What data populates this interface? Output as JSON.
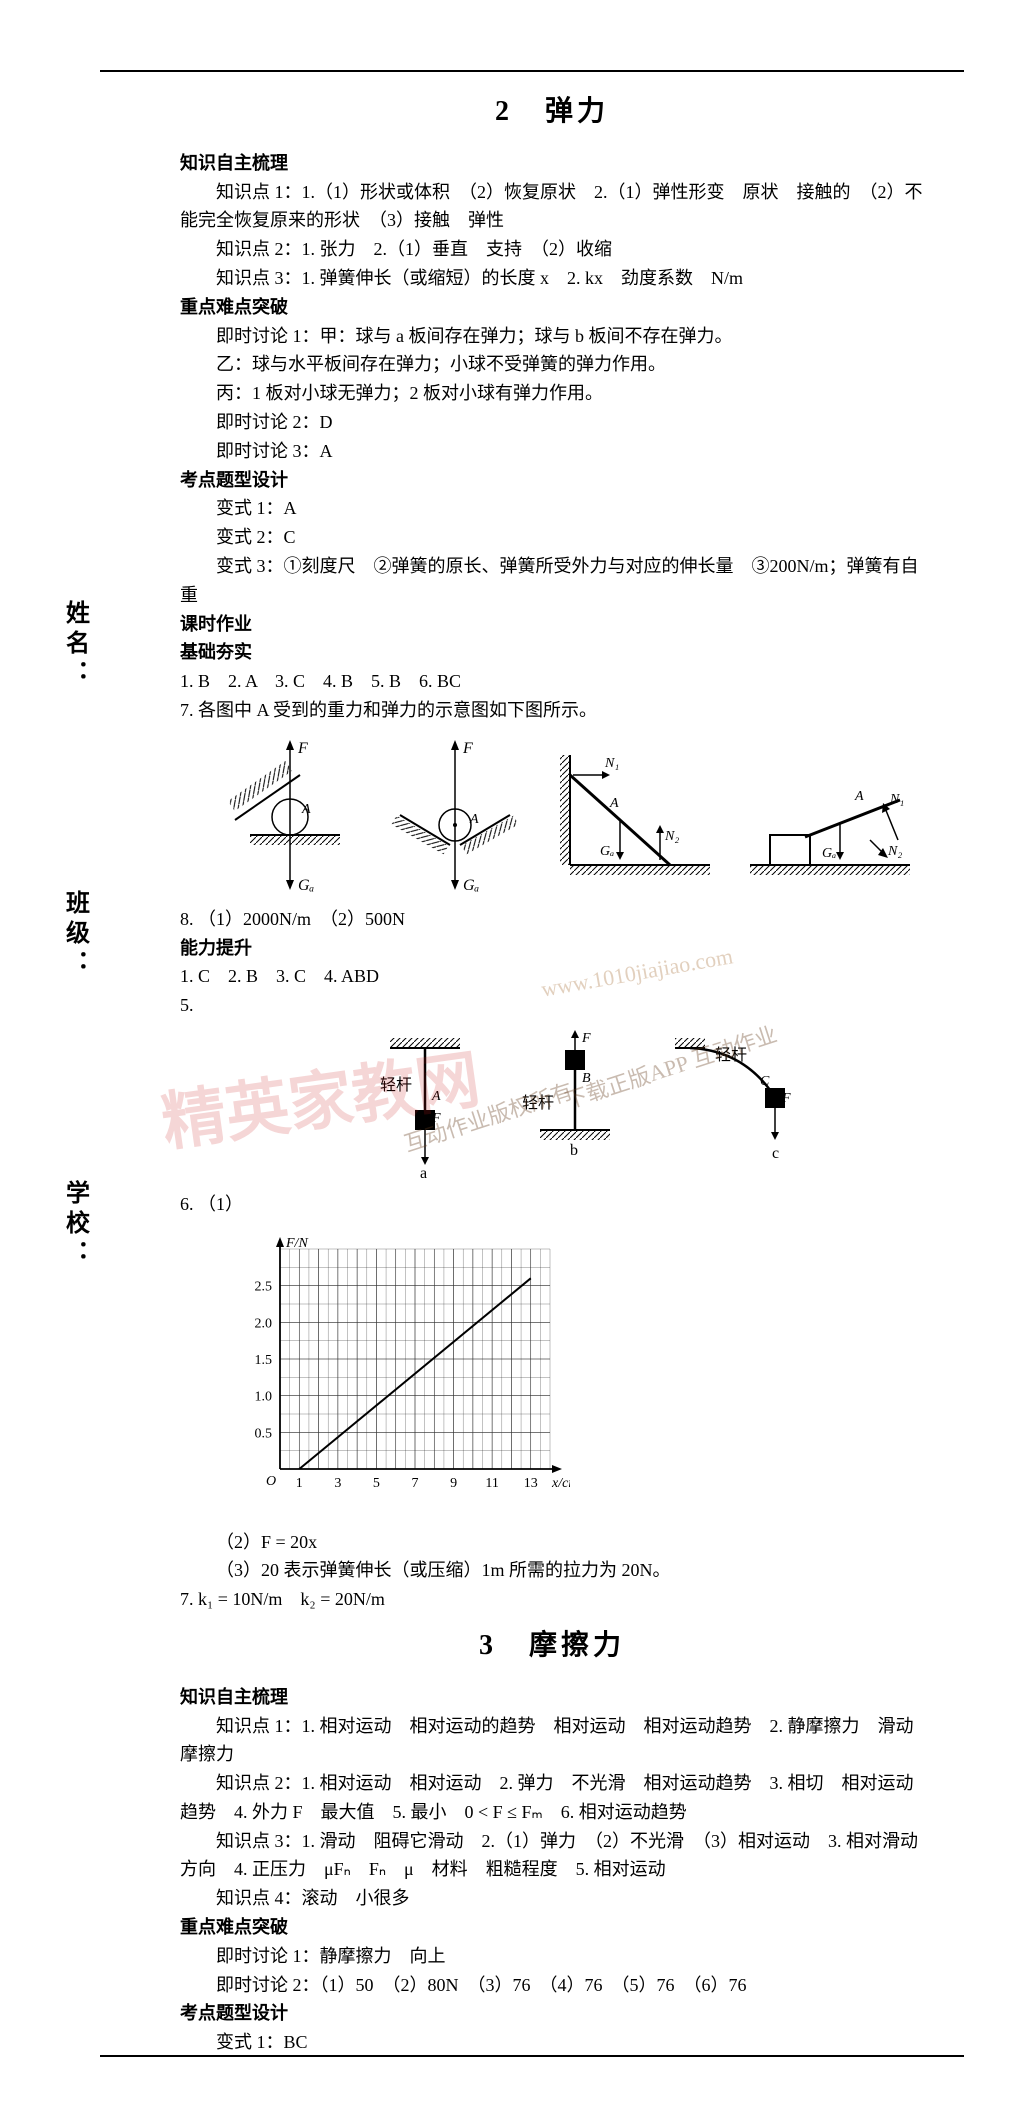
{
  "side_labels": {
    "name": "姓名：",
    "class": "班级：",
    "school": "学校："
  },
  "section2": {
    "title": "2　弹力",
    "zzzs_heading": "知识自主梳理",
    "zzzs_lines": [
      "知识点 1：1.（1）形状或体积　（2）恢复原状　2.（1）弹性形变　原状　接触的　（2）不能完全恢复原来的形状　（3）接触　弹性",
      "知识点 2：1. 张力　2.（1）垂直　支持　（2）收缩",
      "知识点 3：1. 弹簧伸长（或缩短）的长度 x　2. kx　劲度系数　N/m"
    ],
    "zdnd_heading": "重点难点突破",
    "zdnd_lines": [
      "即时讨论 1：甲：球与 a 板间存在弹力；球与 b 板间不存在弹力。",
      "乙：球与水平板间存在弹力；小球不受弹簧的弹力作用。",
      "丙：1 板对小球无弹力；2 板对小球有弹力作用。",
      "即时讨论 2：D",
      "即时讨论 3：A"
    ],
    "kdtx_heading": "考点题型设计",
    "kdtx_lines": [
      "变式 1：A",
      "变式 2：C",
      "变式 3：①刻度尺　②弹簧的原长、弹簧所受外力与对应的伸长量　③200N/m；弹簧有自重"
    ],
    "kszy_heading": "课时作业",
    "jcks_heading": "基础夯实",
    "jcks_answers": "1. B　2. A　3. C　4. B　5. B　6. BC",
    "q7": "7. 各图中 A 受到的重力和弹力的示意图如下图所示。",
    "q8": "8. （1）2000N/m　（2）500N",
    "nlts_heading": "能力提升",
    "nlts_answers": "1. C　2. B　3. C　4. ABD",
    "q5": "5.",
    "q6_1": "6. （1）",
    "q6_2": "（2）F = 20x",
    "q6_3": "（3）20 表示弹簧伸长（或压缩）1m 所需的拉力为 20N。",
    "q7b": "7. k₁ = 10N/m　k₂ = 20N/m",
    "diagram_labels": {
      "F": "F",
      "A": "A",
      "GA": "Gₐ",
      "N1": "N₁",
      "N2": "N₂",
      "qinggan": "轻杆",
      "a": "a",
      "b": "b",
      "c": "c",
      "B": "B",
      "C": "C"
    },
    "chart": {
      "type": "line",
      "xlabel": "x/cm",
      "ylabel": "F/N",
      "xlim": [
        0,
        14
      ],
      "ylim": [
        0,
        3
      ],
      "xticks": [
        1,
        3,
        5,
        7,
        9,
        11,
        13
      ],
      "yticks": [
        0.5,
        1.0,
        1.5,
        2.0,
        2.5
      ],
      "grid_color": "#333333",
      "background_color": "#ffffff",
      "line_color": "#000000",
      "points": [
        [
          1,
          0
        ],
        [
          13,
          2.6
        ]
      ],
      "xtick_labels": [
        "1",
        "3",
        "5",
        "7",
        "9",
        "11",
        "13"
      ],
      "ytick_labels": [
        "0.5",
        "1.0",
        "1.5",
        "2.0",
        "2.5"
      ],
      "origin_label": "O"
    }
  },
  "section3": {
    "title": "3　摩擦力",
    "zzzs_heading": "知识自主梳理",
    "zzzs_lines": [
      "知识点 1：1. 相对运动　相对运动的趋势　相对运动　相对运动趋势　2. 静摩擦力　滑动摩擦力",
      "知识点 2：1. 相对运动　相对运动　2. 弹力　不光滑　相对运动趋势　3. 相切　相对运动趋势　4. 外力 F　最大值　5. 最小　0 < F ≤ Fₘ　6. 相对运动趋势",
      "知识点 3：1. 滑动　阻碍它滑动　2.（1）弹力　（2）不光滑　（3）相对运动　3. 相对滑动方向　4. 正压力　μFₙ　Fₙ　μ　材料　粗糙程度　5. 相对运动",
      "知识点 4：滚动　小很多"
    ],
    "zdnd_heading": "重点难点突破",
    "zdnd_lines": [
      "即时讨论 1：静摩擦力　向上",
      "即时讨论 2：（1）50　（2）80N　（3）76　（4）76　（5）76　（6）76"
    ],
    "kdtx_heading": "考点题型设计",
    "kdtx_lines": [
      "变式 1：BC"
    ]
  },
  "watermarks": {
    "main": "精英家教网",
    "sub1": "互动作业版权所有",
    "sub2": "下载正版APP 互动作业",
    "url": "www.1010jiajiao.com"
  }
}
